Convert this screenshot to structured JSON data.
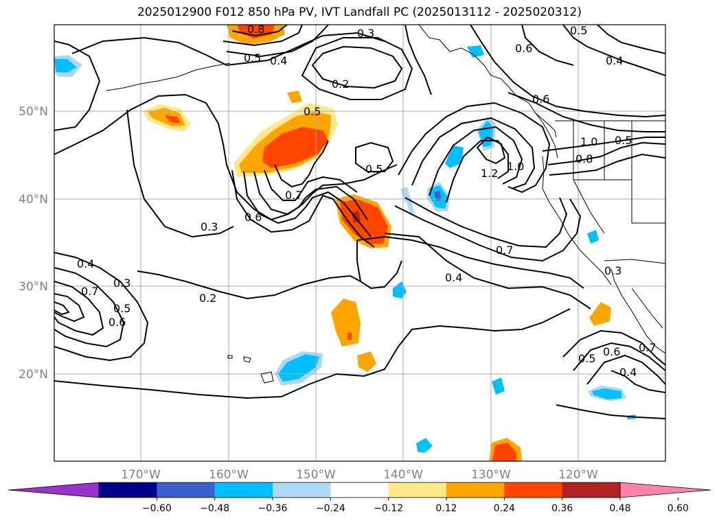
{
  "title": "2025012900 F012 850 hPa PV, IVT Landfall PC (2025013112 - 2025020312)",
  "latitude_labels": [
    "50°N",
    "40°N",
    "30°N",
    "20°N"
  ],
  "longitude_labels": [
    "170°W",
    "160°W",
    "150°W",
    "140°W",
    "130°W",
    "120°W"
  ],
  "colorbar": {
    "colors": [
      "#9933cc",
      "#00008b",
      "#3a5fcd",
      "#00bfff",
      "#add8f5",
      "#ffffff",
      "#ffe88a",
      "#ffa500",
      "#ff4500",
      "#b22222",
      "#ff82ab"
    ],
    "tick_labels": [
      "−0.60",
      "−0.48",
      "−0.36",
      "−0.24",
      "−0.12",
      "0.12",
      "0.24",
      "0.36",
      "0.48",
      "0.60"
    ]
  },
  "contour_labels": [
    "0.8",
    "0.5",
    "0.4",
    "0.3",
    "0.2",
    "0.6",
    "0.5",
    "0.4",
    "0.6",
    "0.5",
    "0.5",
    "1.0",
    "0.8",
    "1.2",
    "1.0",
    "0.5",
    "0.7",
    "0.6",
    "0.3",
    "0.7",
    "0.4",
    "0.4",
    "0.3",
    "0.7",
    "0.5",
    "0.6",
    "0.2",
    "0.3",
    "0.6",
    "0.7",
    "0.5",
    "0.4"
  ]
}
